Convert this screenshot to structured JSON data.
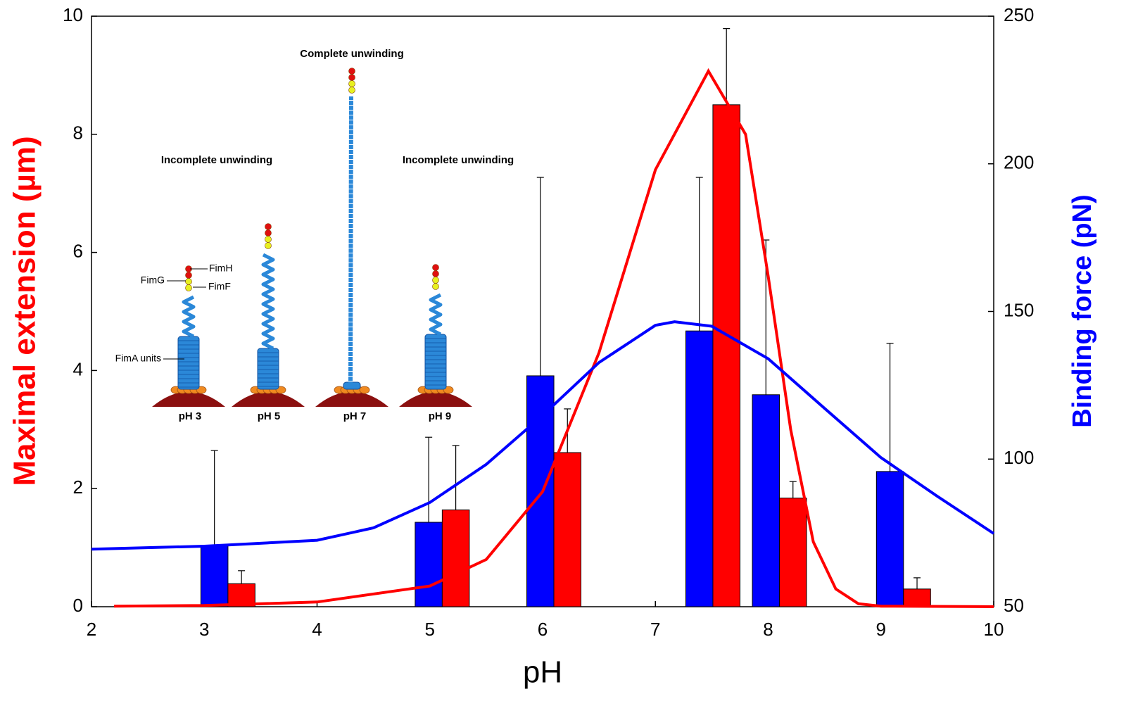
{
  "chart_data": {
    "type": "bar",
    "xlabel": "pH",
    "ylabel": "Maximal extension (µm)",
    "y2label": "Binding force (pN)",
    "xlim": [
      2,
      10
    ],
    "xticks": [
      2,
      3,
      4,
      5,
      6,
      7,
      8,
      9,
      10
    ],
    "ylim": [
      0,
      10
    ],
    "yticks": [
      0,
      2,
      4,
      6,
      8,
      10
    ],
    "y2lim": [
      50,
      250
    ],
    "y2ticks": [
      50,
      100,
      150,
      200,
      250
    ],
    "ylabel_color": "#ff0000",
    "y2label_color": "#0000ff",
    "series": [
      {
        "type": "bar",
        "axis": "y2",
        "color": "#0000ff",
        "x": [
          3.09,
          4.99,
          5.98,
          7.39,
          7.98,
          9.08
        ],
        "values": [
          70.7,
          78.6,
          128.2,
          143.4,
          121.8,
          95.8
        ],
        "errors": [
          32.2,
          28.8,
          67.2,
          52,
          52.4,
          43.4
        ]
      },
      {
        "type": "bar",
        "color": "#ff0000",
        "x": [
          3.33,
          5.23,
          6.22,
          7.63,
          8.22,
          9.32
        ],
        "values": [
          0.39,
          1.64,
          2.61,
          8.5,
          1.84,
          0.3
        ],
        "errors": [
          0.22,
          1.09,
          0.74,
          1.29,
          0.28,
          0.19
        ]
      },
      {
        "type": "line",
        "color": "#ff0000",
        "x": [
          2.2,
          3,
          4,
          5,
          5.5,
          6,
          6.5,
          7,
          7.47,
          7.8,
          8,
          8.2,
          8.4,
          8.6,
          8.8,
          9,
          10
        ],
        "values": [
          0.01,
          0.02,
          0.08,
          0.35,
          0.8,
          1.95,
          4.3,
          7.4,
          9.07,
          8.0,
          5.6,
          3.0,
          1.1,
          0.3,
          0.05,
          0.01,
          0
        ]
      },
      {
        "type": "line",
        "axis": "y2",
        "color": "#0000ff",
        "x": [
          2,
          3,
          4,
          4.5,
          5,
          5.5,
          6,
          6.5,
          7,
          7.17,
          7.5,
          8,
          8.5,
          9,
          9.5,
          10
        ],
        "values": [
          69.5,
          70.5,
          72.5,
          76.7,
          85.3,
          98.2,
          114.8,
          132.7,
          145.3,
          146.5,
          145,
          134,
          117.2,
          100.5,
          87.4,
          74.8
        ]
      }
    ],
    "annotations": [
      "Complete unwinding",
      "Incomplete unwinding",
      "Incomplete unwinding",
      "FimH",
      "FimG",
      "FimF",
      "FimA units",
      "pH 3",
      "pH 5",
      "pH 7",
      "pH 9"
    ]
  }
}
